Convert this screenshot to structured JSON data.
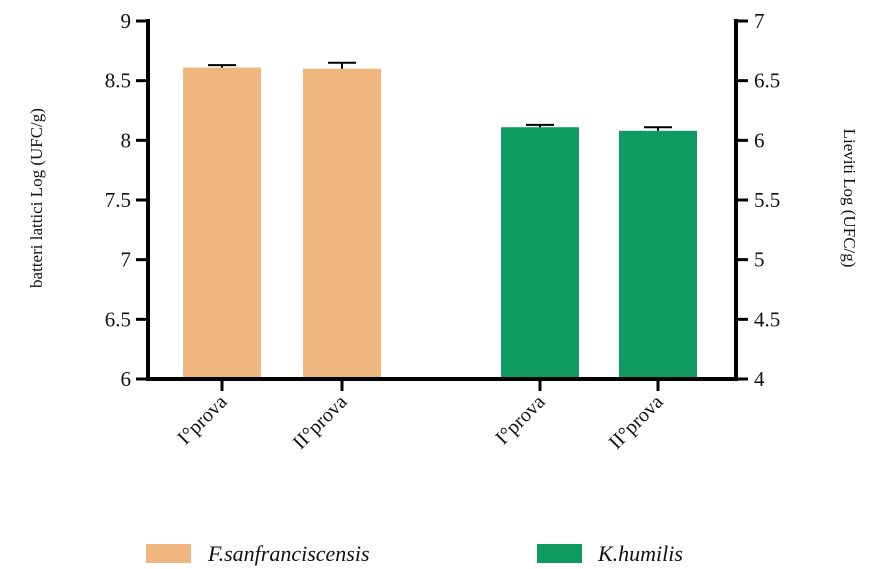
{
  "chart_data": {
    "type": "bar",
    "categories": [
      "I°prova",
      "II°prova",
      "I°prova",
      "II°prova"
    ],
    "series": [
      {
        "name": "F.sanfranciscensis",
        "axis": "left",
        "color": "#f0b67f",
        "points": [
          {
            "category_index": 0,
            "value": 8.61,
            "error": 0.02
          },
          {
            "category_index": 1,
            "value": 8.6,
            "error": 0.05
          }
        ]
      },
      {
        "name": "K.humilis",
        "axis": "right",
        "color": "#0f9a62",
        "points": [
          {
            "category_index": 2,
            "value": 6.11,
            "error": 0.02
          },
          {
            "category_index": 3,
            "value": 6.08,
            "error": 0.03
          }
        ]
      }
    ],
    "y_left": {
      "label": "batteri lattici Log (UFC/g)",
      "ylim": [
        6,
        9
      ],
      "ticks": [
        "6",
        "6.5",
        "7",
        "7.5",
        "8",
        "8.5",
        "9"
      ]
    },
    "y_right": {
      "label": "Lieviti  Log (UFC/g)",
      "ylim": [
        4,
        7
      ],
      "ticks": [
        "4",
        "4.5",
        "5",
        "5.5",
        "6",
        "6.5",
        "7"
      ]
    },
    "grid": false,
    "error_bars": true,
    "legend_position": "bottom"
  }
}
